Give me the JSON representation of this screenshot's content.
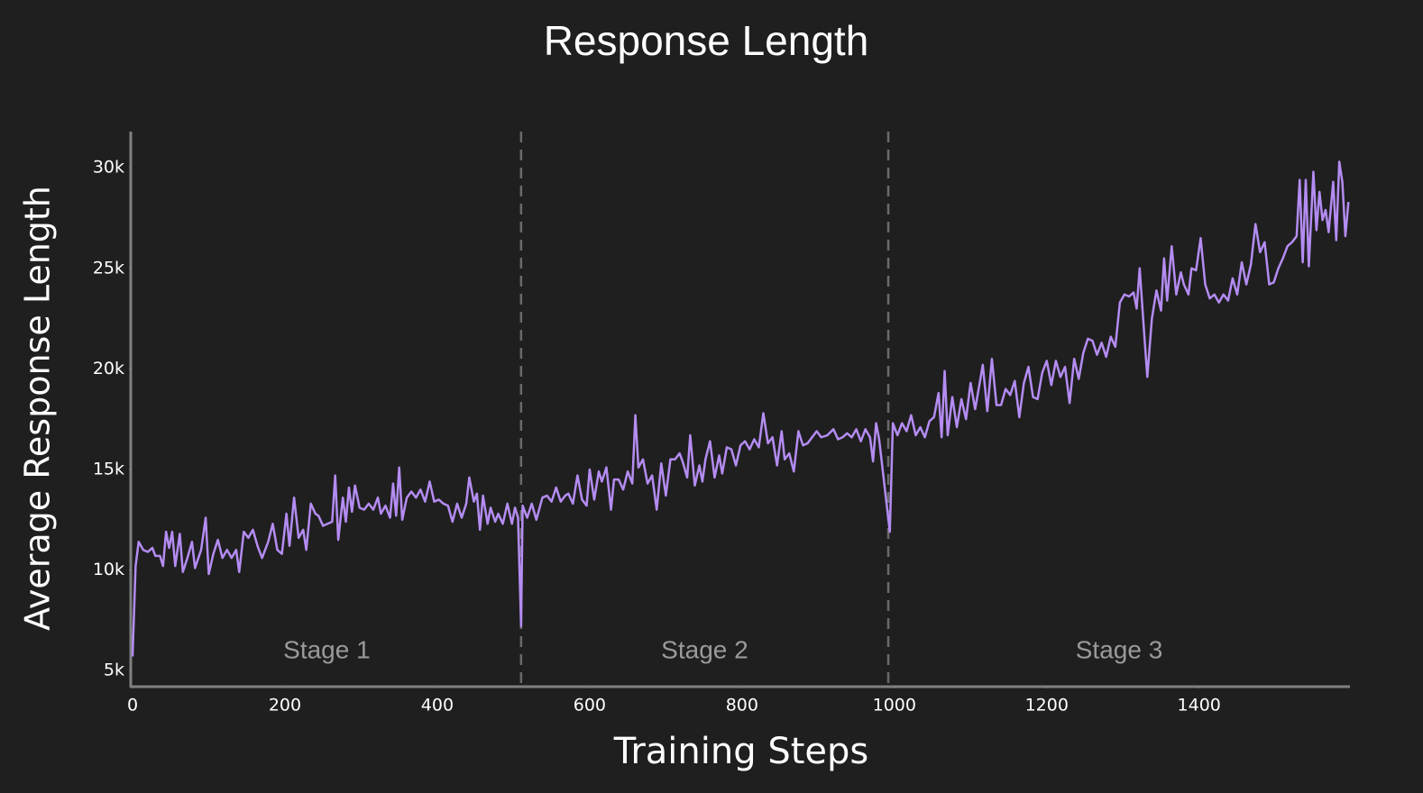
{
  "chart_data": {
    "type": "line",
    "title": "Response Length",
    "x_label": "Training Steps",
    "y_label": "Average Response Length",
    "xlim": [
      0,
      1598
    ],
    "ylim": [
      4200,
      31800
    ],
    "xticks": [
      0,
      200,
      400,
      600,
      800,
      1000,
      1200,
      1400
    ],
    "yticks": [
      {
        "value": 5000,
        "label": "5k"
      },
      {
        "value": 10000,
        "label": "10k"
      },
      {
        "value": 15000,
        "label": "15k"
      },
      {
        "value": 20000,
        "label": "20k"
      },
      {
        "value": 25000,
        "label": "25k"
      },
      {
        "value": 30000,
        "label": "30k"
      }
    ],
    "grid": false,
    "stage_boundaries": [
      510,
      992
    ],
    "stage_labels": [
      "Stage 1",
      "Stage 2",
      "Stage 3"
    ],
    "x": [
      0,
      4,
      8,
      14,
      20,
      26,
      30,
      36,
      40,
      44,
      48,
      52,
      56,
      62,
      66,
      72,
      78,
      82,
      90,
      96,
      100,
      106,
      112,
      118,
      124,
      130,
      136,
      140,
      146,
      152,
      158,
      164,
      170,
      178,
      184,
      190,
      196,
      202,
      206,
      212,
      218,
      224,
      228,
      234,
      240,
      244,
      250,
      256,
      262,
      266,
      270,
      276,
      280,
      284,
      288,
      292,
      298,
      304,
      310,
      316,
      322,
      326,
      332,
      338,
      342,
      346,
      350,
      354,
      360,
      366,
      372,
      378,
      384,
      390,
      396,
      402,
      408,
      414,
      420,
      426,
      432,
      438,
      442,
      448,
      452,
      456,
      460,
      466,
      470,
      476,
      480,
      486,
      492,
      498,
      502,
      506,
      510,
      512,
      518,
      524,
      530,
      538,
      544,
      550,
      556,
      562,
      568,
      572,
      578,
      584,
      590,
      596,
      600,
      606,
      612,
      616,
      622,
      628,
      632,
      638,
      644,
      650,
      656,
      660,
      664,
      670,
      676,
      682,
      688,
      694,
      700,
      706,
      712,
      718,
      722,
      728,
      732,
      738,
      744,
      748,
      752,
      758,
      764,
      770,
      774,
      780,
      786,
      792,
      798,
      804,
      810,
      816,
      822,
      828,
      834,
      840,
      846,
      852,
      856,
      862,
      868,
      874,
      880,
      886,
      892,
      898,
      904,
      912,
      920,
      926,
      932,
      938,
      944,
      950,
      956,
      962,
      968,
      972,
      976,
      980,
      994,
      998,
      1004,
      1010,
      1016,
      1022,
      1028,
      1034,
      1040,
      1046,
      1052,
      1058,
      1062,
      1066,
      1070,
      1076,
      1082,
      1088,
      1094,
      1100,
      1106,
      1112,
      1116,
      1122,
      1128,
      1134,
      1140,
      1146,
      1152,
      1158,
      1164,
      1170,
      1176,
      1182,
      1188,
      1194,
      1200,
      1206,
      1212,
      1218,
      1224,
      1230,
      1236,
      1242,
      1248,
      1254,
      1260,
      1266,
      1272,
      1278,
      1284,
      1290,
      1296,
      1302,
      1308,
      1314,
      1318,
      1322,
      1328,
      1332,
      1338,
      1344,
      1350,
      1354,
      1358,
      1364,
      1370,
      1376,
      1380,
      1386,
      1390,
      1396,
      1402,
      1408,
      1414,
      1420,
      1426,
      1432,
      1438,
      1444,
      1450,
      1456,
      1462,
      1468,
      1474,
      1480,
      1486,
      1492,
      1498,
      1504,
      1510,
      1516,
      1522,
      1528,
      1532,
      1536,
      1540,
      1544,
      1550,
      1554,
      1558,
      1562,
      1566,
      1570,
      1576,
      1580,
      1584,
      1588,
      1592,
      1596
    ],
    "series": [
      {
        "color": "#b48cf2",
        "values": [
          5700,
          10200,
          11400,
          11000,
          10900,
          11100,
          10700,
          10700,
          10200,
          11900,
          11100,
          11900,
          10200,
          11800,
          9900,
          10600,
          11400,
          10100,
          11000,
          12600,
          9800,
          10800,
          11500,
          10600,
          11000,
          10600,
          11000,
          9900,
          11900,
          11600,
          12000,
          11200,
          10600,
          11400,
          12300,
          11000,
          10800,
          12800,
          11200,
          13600,
          11600,
          12000,
          11000,
          13300,
          12800,
          12700,
          12200,
          12300,
          12400,
          14700,
          11500,
          13600,
          12400,
          14100,
          12900,
          14200,
          13100,
          13000,
          13300,
          13000,
          13600,
          12800,
          13200,
          12600,
          14300,
          12700,
          15100,
          12500,
          13600,
          13900,
          13600,
          14000,
          13400,
          14400,
          13400,
          13500,
          13300,
          13200,
          12400,
          13300,
          12600,
          13300,
          14600,
          13400,
          13800,
          12000,
          13700,
          12300,
          13100,
          12400,
          12800,
          12300,
          13300,
          12300,
          13100,
          12600,
          7200,
          13200,
          12600,
          13300,
          12500,
          13600,
          13700,
          13400,
          14100,
          13400,
          13700,
          13800,
          13300,
          14700,
          13500,
          13200,
          15000,
          13500,
          14900,
          14400,
          15100,
          13000,
          14500,
          14500,
          14000,
          14900,
          14300,
          17700,
          15100,
          15500,
          14300,
          14700,
          13000,
          15300,
          13700,
          15500,
          15500,
          15800,
          15400,
          14600,
          16700,
          14200,
          15200,
          14400,
          15500,
          16400,
          14600,
          15700,
          14800,
          16100,
          16000,
          15200,
          16200,
          16400,
          16000,
          16500,
          16100,
          17800,
          16300,
          16600,
          15200,
          16900,
          15500,
          15800,
          14900,
          16900,
          16200,
          16300,
          16600,
          16900,
          16600,
          16700,
          17000,
          16500,
          16600,
          16800,
          16600,
          17000,
          16400,
          17000,
          16600,
          15400,
          17300,
          16500,
          11900,
          17300,
          16700,
          17300,
          16900,
          17700,
          16700,
          17100,
          16600,
          17400,
          17600,
          18800,
          16600,
          19900,
          16700,
          18600,
          17100,
          18500,
          17500,
          19300,
          18000,
          19300,
          20200,
          17900,
          20500,
          18200,
          18200,
          19000,
          18700,
          19400,
          17600,
          19300,
          20100,
          18600,
          18500,
          19800,
          20400,
          19200,
          20400,
          19600,
          20100,
          18300,
          20500,
          19500,
          20800,
          21500,
          21400,
          20700,
          21300,
          20600,
          21600,
          21100,
          23300,
          23700,
          23600,
          23800,
          23000,
          25000,
          21700,
          19600,
          22500,
          23900,
          22900,
          25500,
          23400,
          26100,
          23700,
          24800,
          24200,
          23700,
          25000,
          24900,
          26500,
          24200,
          23500,
          23700,
          23300,
          23700,
          23400,
          24500,
          23700,
          25300,
          24200,
          25200,
          27200,
          25800,
          26300,
          24200,
          24300,
          25000,
          25500,
          26100,
          26300,
          26600,
          29400,
          25300,
          29400,
          25100,
          29800,
          26900,
          28800,
          27400,
          27900,
          26800,
          29300,
          26400,
          30300,
          29300,
          26600,
          28300
        ]
      }
    ]
  }
}
